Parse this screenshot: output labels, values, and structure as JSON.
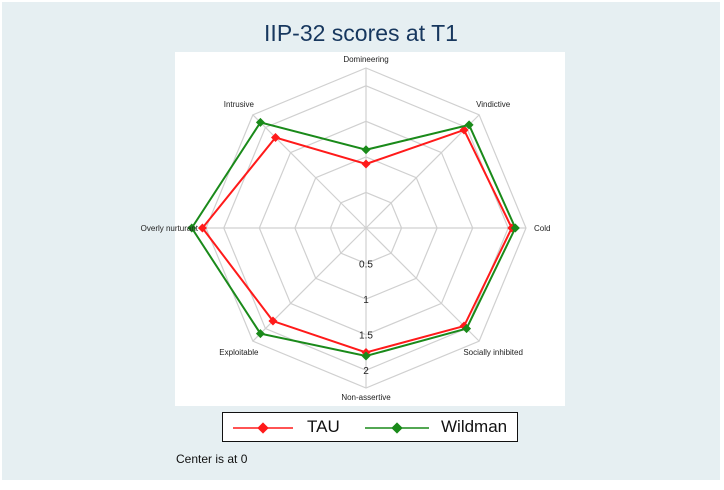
{
  "chart_data": {
    "type": "radar",
    "title": "IIP-32 scores at T1",
    "axes": [
      "Domineering",
      "Vindictive",
      "Cold",
      "Socially inhibited",
      "Non-assertive",
      "Exploitable",
      "Overly nurturant",
      "Intrusive"
    ],
    "ring_labels": [
      "0.5",
      "1",
      "1.5",
      "2"
    ],
    "rmax": 2.25,
    "series": [
      {
        "name": "TAU",
        "color": "#ff1a1a",
        "values": [
          0.9,
          1.95,
          2.05,
          1.95,
          1.75,
          1.85,
          2.3,
          1.8
        ]
      },
      {
        "name": "Wildman",
        "color": "#1a8a1a",
        "values": [
          1.1,
          2.05,
          2.1,
          2.0,
          1.8,
          2.1,
          2.45,
          2.1
        ]
      }
    ],
    "note": "Center is at 0"
  }
}
